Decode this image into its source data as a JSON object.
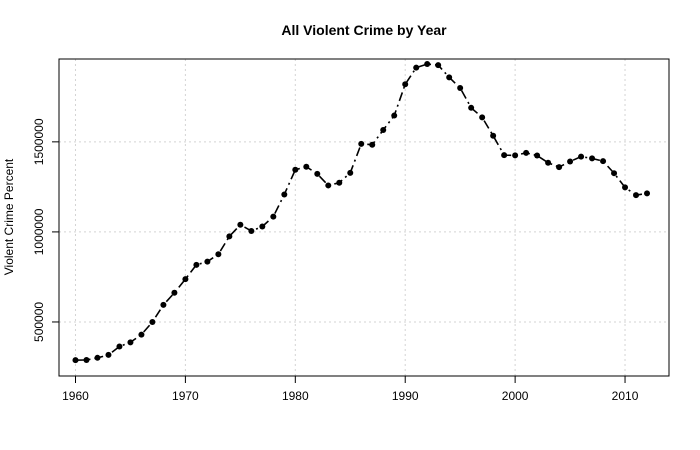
{
  "chart_data": {
    "type": "line",
    "title": "All Violent Crime by Year",
    "xlabel": "",
    "ylabel": "Violent Crime Percent",
    "xlim": [
      1958.5,
      2014.0
    ],
    "ylim": [
      200000,
      1960000
    ],
    "x_ticks": [
      1960,
      1970,
      1980,
      1990,
      2000,
      2010
    ],
    "y_ticks": [
      500000,
      1000000,
      1500000
    ],
    "grid": true,
    "legend": "none",
    "series": [
      {
        "marker": "circle",
        "line_style": "dash-dot",
        "x": [
          1960,
          1961,
          1962,
          1963,
          1964,
          1965,
          1966,
          1967,
          1968,
          1969,
          1970,
          1971,
          1972,
          1973,
          1974,
          1975,
          1976,
          1977,
          1978,
          1979,
          1980,
          1981,
          1982,
          1983,
          1984,
          1985,
          1986,
          1987,
          1988,
          1989,
          1990,
          1991,
          1992,
          1993,
          1994,
          1995,
          1996,
          1997,
          1998,
          1999,
          2000,
          2001,
          2002,
          2003,
          2004,
          2005,
          2006,
          2007,
          2008,
          2009,
          2010,
          2011,
          2012
        ],
        "values": [
          288000,
          289000,
          301000,
          317000,
          364000,
          387000,
          430000,
          500000,
          595000,
          662000,
          738000,
          817000,
          835000,
          876000,
          975000,
          1040000,
          1005000,
          1030000,
          1085000,
          1208000,
          1345000,
          1362000,
          1322000,
          1258000,
          1273000,
          1328000,
          1489000,
          1484000,
          1566000,
          1646000,
          1820000,
          1912000,
          1932000,
          1926000,
          1858000,
          1799000,
          1689000,
          1636000,
          1534000,
          1426000,
          1425000,
          1439000,
          1424000,
          1384000,
          1360000,
          1391000,
          1418000,
          1408000,
          1393000,
          1326000,
          1247000,
          1204000,
          1214000
        ]
      }
    ]
  }
}
